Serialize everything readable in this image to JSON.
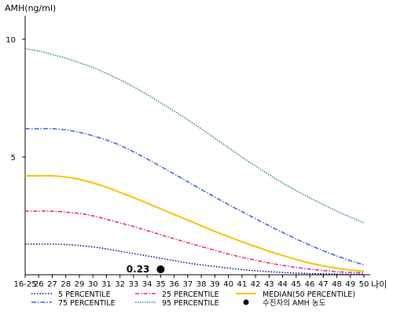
{
  "chart_data": {
    "type": "line",
    "ylabel": "AMH(ng/ml)",
    "xlabel": "나이",
    "categories": [
      "16-25",
      "26",
      "27",
      "28",
      "29",
      "30",
      "31",
      "32",
      "33",
      "34",
      "35",
      "36",
      "37",
      "38",
      "39",
      "40",
      "41",
      "42",
      "43",
      "44",
      "45",
      "46",
      "47",
      "48",
      "49",
      "50"
    ],
    "ylim": [
      0,
      11
    ],
    "yticks": [
      5,
      10
    ],
    "series": [
      {
        "name": "5 PERCENTILE",
        "color": "#000080",
        "dash": "1.5,2",
        "values": [
          1.3,
          1.3,
          1.3,
          1.28,
          1.24,
          1.18,
          1.1,
          1.0,
          0.9,
          0.8,
          0.7,
          0.6,
          0.5,
          0.42,
          0.35,
          0.28,
          0.22,
          0.17,
          0.13,
          0.1,
          0.07,
          0.05,
          0.04,
          0.03,
          0.02,
          0.02
        ]
      },
      {
        "name": "25 PERCENTILE",
        "color": "#e0207e",
        "dash": "5,2,1.5,2",
        "values": [
          2.7,
          2.7,
          2.7,
          2.66,
          2.6,
          2.5,
          2.36,
          2.2,
          2.05,
          1.88,
          1.7,
          1.53,
          1.36,
          1.2,
          1.04,
          0.88,
          0.74,
          0.62,
          0.5,
          0.4,
          0.31,
          0.24,
          0.18,
          0.13,
          0.1,
          0.08
        ]
      },
      {
        "name": "MEDIAN(50 PERCENTILE)",
        "color": "#f2c400",
        "dash": "",
        "values": [
          4.2,
          4.2,
          4.2,
          4.15,
          4.05,
          3.9,
          3.72,
          3.5,
          3.28,
          3.04,
          2.8,
          2.56,
          2.32,
          2.08,
          1.84,
          1.62,
          1.4,
          1.2,
          1.0,
          0.82,
          0.65,
          0.5,
          0.38,
          0.28,
          0.2,
          0.15
        ]
      },
      {
        "name": "75 PERCENTILE",
        "color": "#3a5fcd",
        "dash": "6,2,1.5,2",
        "values": [
          6.2,
          6.2,
          6.2,
          6.15,
          6.05,
          5.9,
          5.72,
          5.5,
          5.22,
          4.92,
          4.6,
          4.28,
          3.95,
          3.62,
          3.3,
          2.98,
          2.68,
          2.38,
          2.08,
          1.8,
          1.52,
          1.26,
          1.02,
          0.8,
          0.6,
          0.42
        ]
      },
      {
        "name": "95 PERCENTILE",
        "color": "#2e8b57",
        "dash": "1.5,1.5",
        "values": [
          9.6,
          9.5,
          9.35,
          9.2,
          9.0,
          8.8,
          8.55,
          8.28,
          7.98,
          7.65,
          7.3,
          6.95,
          6.58,
          6.2,
          5.8,
          5.4,
          5.0,
          4.62,
          4.25,
          3.9,
          3.57,
          3.27,
          2.98,
          2.7,
          2.45,
          2.2
        ]
      }
    ],
    "highlight_point": {
      "x": "35",
      "y": 0.23,
      "label": "0.23",
      "legend": "수진자의 AMH 농도"
    },
    "legend_position": "bottom",
    "grid": false
  }
}
